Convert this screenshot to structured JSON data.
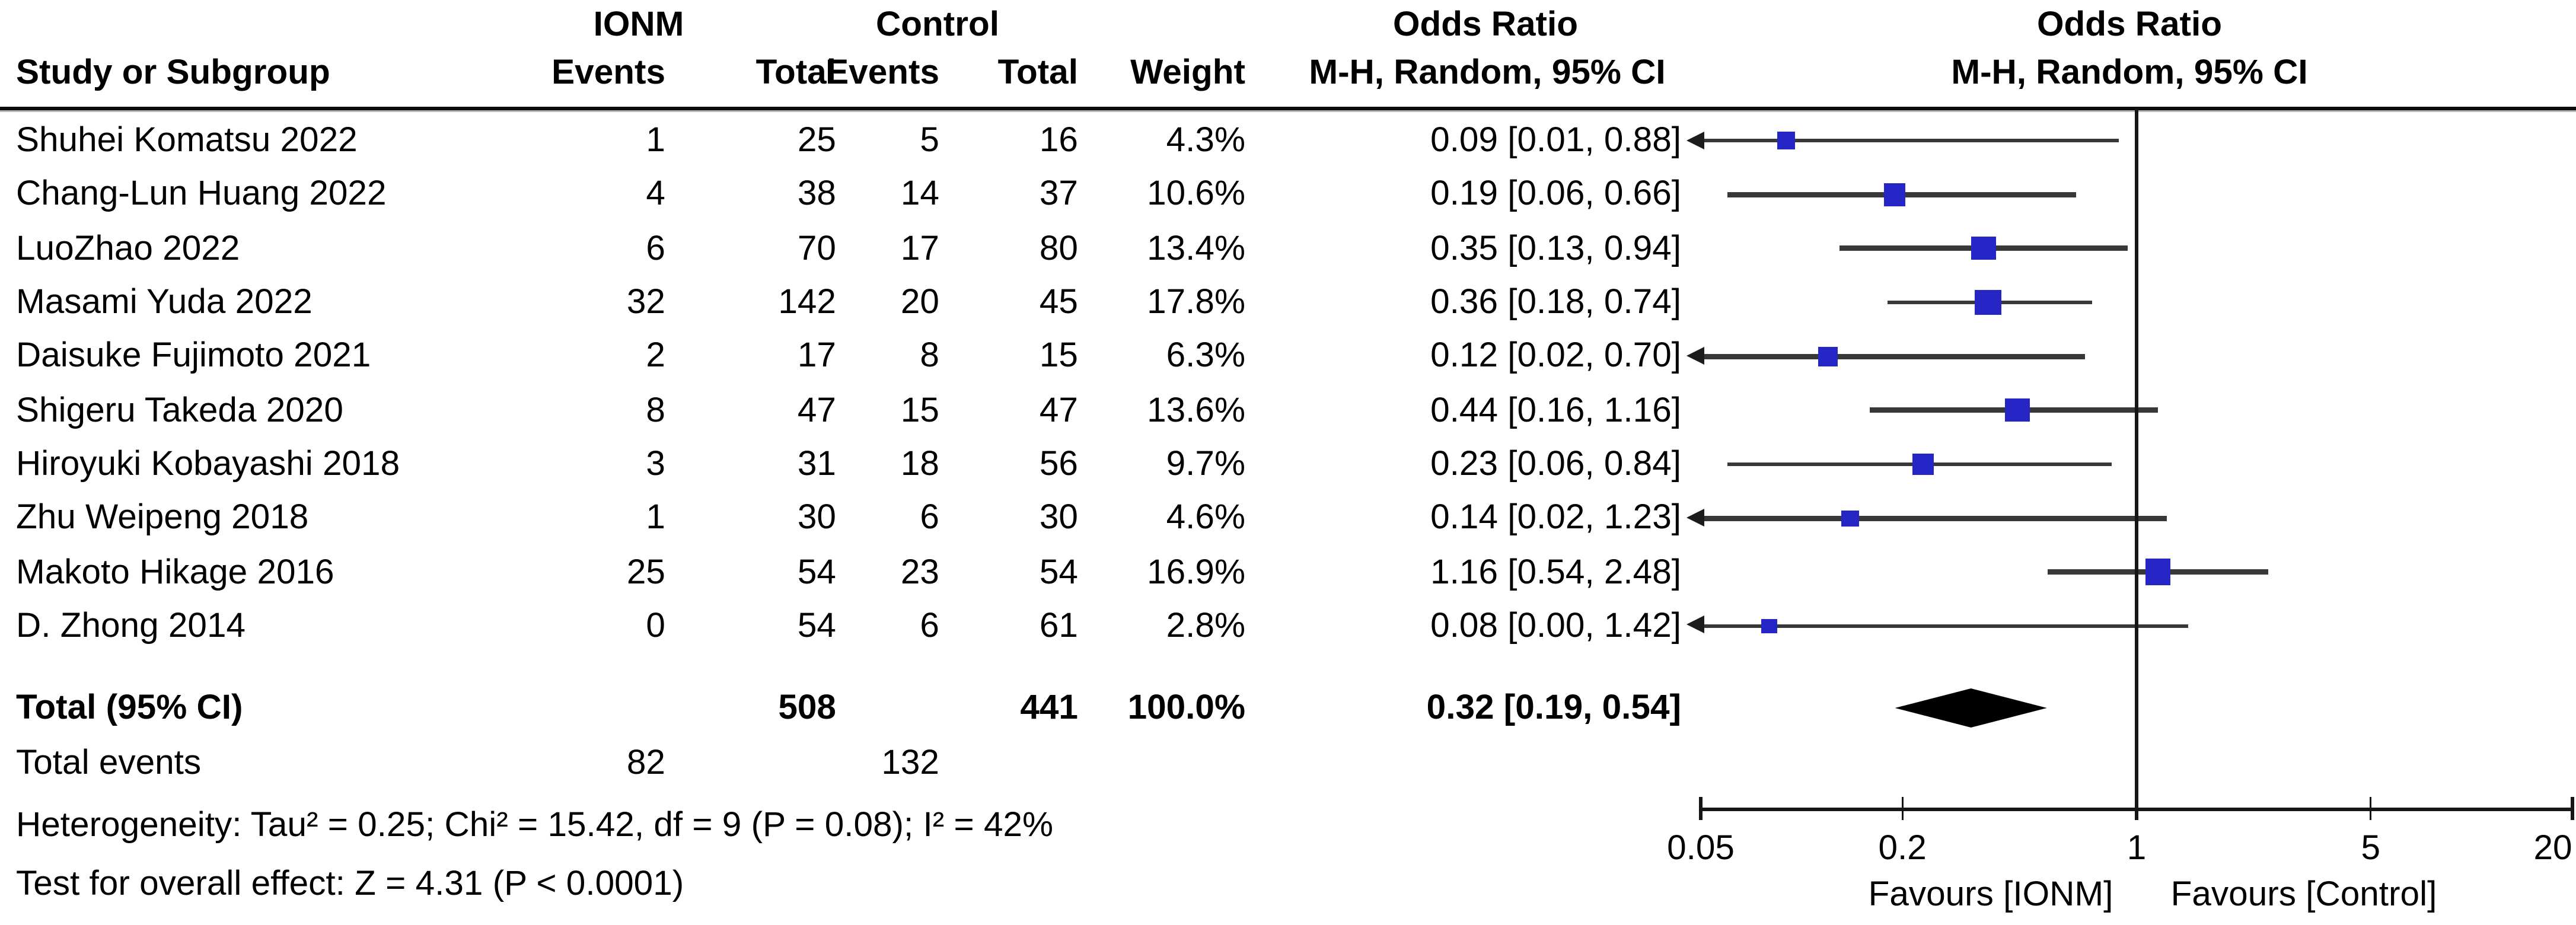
{
  "header": {
    "group_ionm": "IONM",
    "group_control": "Control",
    "or_col_title": "Odds Ratio",
    "or_col_sub": "M-H, Random, 95% CI",
    "plot_title": "Odds Ratio",
    "plot_sub": "M-H, Random, 95% CI",
    "study_col": "Study or Subgroup",
    "events_col": "Events",
    "total_col": "Total",
    "weight_col": "Weight"
  },
  "rows": [
    {
      "study": "Shuhei Komatsu 2022",
      "ionm_events": "1",
      "ionm_total": "25",
      "ctrl_events": "5",
      "ctrl_total": "16",
      "weight": "4.3%",
      "weight_value": 4.3,
      "or_ci": "0.09 [0.01, 0.88]",
      "or": 0.09,
      "ci_low": 0.01,
      "ci_high": 0.88
    },
    {
      "study": "Chang-Lun Huang 2022",
      "ionm_events": "4",
      "ionm_total": "38",
      "ctrl_events": "14",
      "ctrl_total": "37",
      "weight": "10.6%",
      "weight_value": 10.6,
      "or_ci": "0.19 [0.06, 0.66]",
      "or": 0.19,
      "ci_low": 0.06,
      "ci_high": 0.66
    },
    {
      "study": "LuoZhao 2022",
      "ionm_events": "6",
      "ionm_total": "70",
      "ctrl_events": "17",
      "ctrl_total": "80",
      "weight": "13.4%",
      "weight_value": 13.4,
      "or_ci": "0.35 [0.13, 0.94]",
      "or": 0.35,
      "ci_low": 0.13,
      "ci_high": 0.94
    },
    {
      "study": "Masami Yuda 2022",
      "ionm_events": "32",
      "ionm_total": "142",
      "ctrl_events": "20",
      "ctrl_total": "45",
      "weight": "17.8%",
      "weight_value": 17.8,
      "or_ci": "0.36 [0.18, 0.74]",
      "or": 0.36,
      "ci_low": 0.18,
      "ci_high": 0.74
    },
    {
      "study": "Daisuke Fujimoto 2021",
      "ionm_events": "2",
      "ionm_total": "17",
      "ctrl_events": "8",
      "ctrl_total": "15",
      "weight": "6.3%",
      "weight_value": 6.3,
      "or_ci": "0.12 [0.02, 0.70]",
      "or": 0.12,
      "ci_low": 0.02,
      "ci_high": 0.7
    },
    {
      "study": "Shigeru Takeda 2020",
      "ionm_events": "8",
      "ionm_total": "47",
      "ctrl_events": "15",
      "ctrl_total": "47",
      "weight": "13.6%",
      "weight_value": 13.6,
      "or_ci": "0.44 [0.16, 1.16]",
      "or": 0.44,
      "ci_low": 0.16,
      "ci_high": 1.16
    },
    {
      "study": "Hiroyuki Kobayashi 2018",
      "ionm_events": "3",
      "ionm_total": "31",
      "ctrl_events": "18",
      "ctrl_total": "56",
      "weight": "9.7%",
      "weight_value": 9.7,
      "or_ci": "0.23 [0.06, 0.84]",
      "or": 0.23,
      "ci_low": 0.06,
      "ci_high": 0.84
    },
    {
      "study": "Zhu Weipeng 2018",
      "ionm_events": "1",
      "ionm_total": "30",
      "ctrl_events": "6",
      "ctrl_total": "30",
      "weight": "4.6%",
      "weight_value": 4.6,
      "or_ci": "0.14 [0.02, 1.23]",
      "or": 0.14,
      "ci_low": 0.02,
      "ci_high": 1.23
    },
    {
      "study": "Makoto Hikage 2016",
      "ionm_events": "25",
      "ionm_total": "54",
      "ctrl_events": "23",
      "ctrl_total": "54",
      "weight": "16.9%",
      "weight_value": 16.9,
      "or_ci": "1.16 [0.54, 2.48]",
      "or": 1.16,
      "ci_low": 0.54,
      "ci_high": 2.48
    },
    {
      "study": "D. Zhong 2014",
      "ionm_events": "0",
      "ionm_total": "54",
      "ctrl_events": "6",
      "ctrl_total": "61",
      "weight": "2.8%",
      "weight_value": 2.8,
      "or_ci": "0.08 [0.00, 1.42]",
      "or": 0.08,
      "ci_low": 0.004,
      "ci_high": 1.42
    }
  ],
  "totals": {
    "label": "Total (95% CI)",
    "ionm_total": "508",
    "ctrl_total": "441",
    "weight": "100.0%",
    "or_ci": "0.32 [0.19, 0.54]",
    "or": 0.32,
    "ci_low": 0.19,
    "ci_high": 0.54
  },
  "total_events": {
    "label": "Total events",
    "ionm": "82",
    "ctrl": "132"
  },
  "heterogeneity": "Heterogeneity: Tau² = 0.25; Chi² = 15.42, df = 9 (P = 0.08); I² = 42%",
  "overall_effect": "Test for overall effect: Z = 4.31 (P < 0.0001)",
  "axis": {
    "scale": "log",
    "min": 0.05,
    "max": 20,
    "tick_values": [
      0.05,
      0.2,
      1,
      5,
      20
    ],
    "tick_labels": [
      "0.05",
      "0.2",
      "1",
      "5",
      "20"
    ],
    "favours_left": "Favours [IONM]",
    "favours_right": "Favours [Control]"
  },
  "colors": {
    "marker_blue": "#2626C6",
    "ci_line": "#383838",
    "axis_line": "#161616",
    "diamond": "#000000"
  },
  "chart_data": {
    "type": "forest",
    "title": "Odds Ratio  M-H, Random, 95% CI",
    "x_scale": "log",
    "x_ticks": [
      0.05,
      0.2,
      1,
      5,
      20
    ],
    "x_range": [
      0.05,
      20
    ],
    "null_line": 1,
    "categories": [
      "Shuhei Komatsu 2022",
      "Chang-Lun Huang 2022",
      "LuoZhao 2022",
      "Masami Yuda 2022",
      "Daisuke Fujimoto 2021",
      "Shigeru Takeda 2020",
      "Hiroyuki Kobayashi 2018",
      "Zhu Weipeng 2018",
      "Makoto Hikage 2016",
      "D. Zhong 2014"
    ],
    "series": [
      {
        "name": "odds_ratio",
        "values": [
          0.09,
          0.19,
          0.35,
          0.36,
          0.12,
          0.44,
          0.23,
          0.14,
          1.16,
          0.08
        ]
      },
      {
        "name": "ci_lower",
        "values": [
          0.01,
          0.06,
          0.13,
          0.18,
          0.02,
          0.16,
          0.06,
          0.02,
          0.54,
          0.0
        ]
      },
      {
        "name": "ci_upper",
        "values": [
          0.88,
          0.66,
          0.94,
          0.74,
          0.7,
          1.16,
          0.84,
          1.23,
          2.48,
          1.42
        ]
      },
      {
        "name": "weight_pct",
        "values": [
          4.3,
          10.6,
          13.4,
          17.8,
          6.3,
          13.6,
          9.7,
          4.6,
          16.9,
          2.8
        ]
      },
      {
        "name": "ionm_events",
        "values": [
          1,
          4,
          6,
          32,
          2,
          8,
          3,
          1,
          25,
          0
        ]
      },
      {
        "name": "ionm_total",
        "values": [
          25,
          38,
          70,
          142,
          17,
          47,
          31,
          30,
          54,
          54
        ]
      },
      {
        "name": "control_events",
        "values": [
          5,
          14,
          17,
          20,
          8,
          15,
          18,
          6,
          23,
          6
        ]
      },
      {
        "name": "control_total",
        "values": [
          16,
          37,
          80,
          45,
          15,
          47,
          56,
          30,
          54,
          61
        ]
      }
    ],
    "total": {
      "odds_ratio": 0.32,
      "ci": [
        0.19,
        0.54
      ],
      "ionm_total": 508,
      "control_total": 441,
      "weight_pct": 100.0
    },
    "xlabel_left": "Favours [IONM]",
    "xlabel_right": "Favours [Control]",
    "legend": "none",
    "grid": false
  }
}
